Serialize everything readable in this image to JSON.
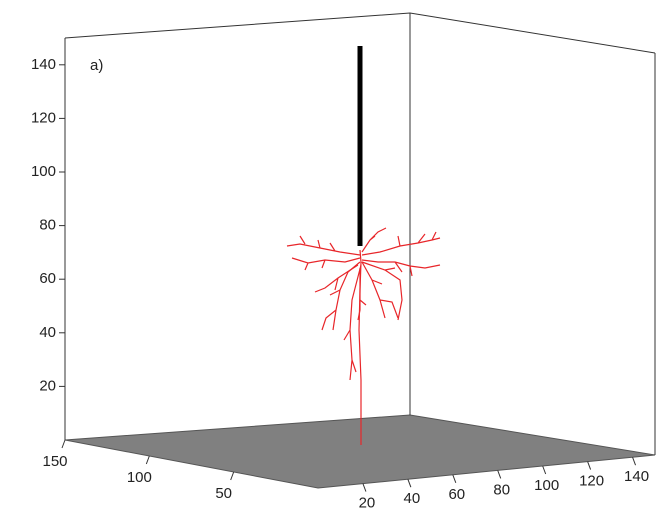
{
  "chart_data": {
    "type": "box3d",
    "annotation": "a)",
    "xlim": [
      0,
      150
    ],
    "xticks": [
      20,
      40,
      60,
      80,
      100,
      120,
      140
    ],
    "ylim": [
      0,
      150
    ],
    "yticks": [
      50,
      100,
      150
    ],
    "zlim": [
      0,
      150
    ],
    "zticks": [
      20,
      40,
      60,
      80,
      100,
      120,
      140
    ]
  }
}
